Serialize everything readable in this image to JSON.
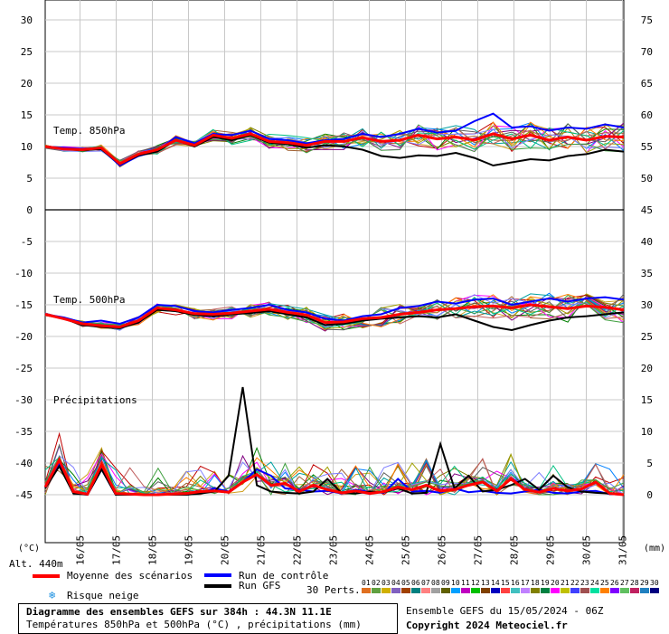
{
  "chart_data": {
    "type": "line",
    "dates": [
      "16/05",
      "17/05",
      "18/05",
      "19/05",
      "20/05",
      "21/05",
      "22/05",
      "23/05",
      "24/05",
      "25/05",
      "26/05",
      "27/05",
      "28/05",
      "29/05",
      "30/05",
      "31/05"
    ],
    "y_left_ticks": [
      30,
      25,
      20,
      15,
      10,
      5,
      0,
      -5,
      -10,
      -15,
      -20,
      -25,
      -30,
      -35,
      -40,
      -45
    ],
    "y_right_ticks": [
      75,
      70,
      65,
      60,
      55,
      50,
      45,
      40,
      35,
      30,
      25,
      20,
      15,
      10,
      5,
      0
    ],
    "y_left_unit": "(°C)",
    "y_right_unit": "(mm)",
    "panel_labels": {
      "t850": "Temp. 850hPa",
      "t500": "Temp. 500hPa",
      "precip": "Précipitations"
    },
    "series": [
      {
        "name": "Moyenne des scénarios",
        "color": "#ff0000",
        "t850": [
          10,
          9.6,
          9.5,
          9.8,
          7.3,
          8.8,
          9.5,
          11,
          10.2,
          11.8,
          11.3,
          12,
          10.8,
          10.6,
          10.2,
          10.8,
          10.8,
          11.4,
          10.8,
          11,
          11.8,
          11.2,
          11.5,
          11,
          12,
          11.2,
          11.8,
          11,
          11.5,
          11,
          11.6,
          11.5
        ],
        "t500": [
          -16.5,
          -17.2,
          -18,
          -18.3,
          -18.5,
          -17.5,
          -15.5,
          -15.8,
          -16.4,
          -16.5,
          -16.3,
          -16,
          -15.7,
          -16.2,
          -16.6,
          -17.8,
          -17.7,
          -17.2,
          -17,
          -16.5,
          -16.2,
          -15.8,
          -15.6,
          -15.3,
          -15.2,
          -15.5,
          -15,
          -15.3,
          -15.6,
          -15.2,
          -15.4,
          -15.8
        ],
        "precip": [
          1.2,
          5.5,
          0.5,
          0.1,
          4.8,
          0.2,
          0.1,
          0,
          0,
          0.1,
          0.2,
          0.5,
          0.6,
          0.4,
          2,
          3.2,
          1.5,
          1.8,
          0.5,
          1.5,
          0.8,
          0.3,
          0.6,
          0.2,
          0.5,
          1.2,
          0.8,
          1.5,
          0.6,
          0.8,
          1.5,
          2,
          0.6,
          2.5,
          0.8,
          0.4,
          1,
          0.6,
          0.9,
          2,
          0.2,
          0
        ]
      },
      {
        "name": "Run de contrôle",
        "color": "#0000ff",
        "t850": [
          10,
          9.8,
          9.6,
          9.7,
          7,
          8.5,
          9.3,
          11.5,
          10.5,
          12,
          11.8,
          12.5,
          11.2,
          11,
          10.5,
          11,
          11.2,
          12,
          11.5,
          12,
          12.8,
          12.2,
          12.5,
          14,
          15.2,
          13,
          13.2,
          12.5,
          13,
          12.8,
          13.5,
          13
        ],
        "t500": [
          -16.5,
          -17,
          -17.8,
          -17.5,
          -18,
          -17,
          -15,
          -15.2,
          -16,
          -16.2,
          -15.8,
          -15.5,
          -15,
          -15.8,
          -16.2,
          -17.2,
          -17.5,
          -16.8,
          -16.5,
          -15.5,
          -15.2,
          -14.5,
          -14.8,
          -14.2,
          -14,
          -15,
          -14.5,
          -14,
          -14.5,
          -14,
          -13.8,
          -14.2
        ],
        "precip": [
          1,
          5,
          0.3,
          0,
          4,
          0,
          0,
          0,
          0,
          0,
          0,
          0.3,
          1,
          0.5,
          2,
          4,
          3,
          1,
          0.8,
          0.5,
          0.6,
          0.2,
          0.8,
          0.4,
          0.3,
          2.5,
          0.5,
          0.6,
          0.3,
          1,
          0.4,
          0.6,
          0.3,
          0.2,
          0.5,
          0.8,
          0.3,
          0.2,
          0.5,
          0.6,
          0.1,
          0
        ]
      },
      {
        "name": "Run GFS",
        "color": "#000000",
        "t850": [
          10,
          9.6,
          9.4,
          9.6,
          7.2,
          8.6,
          9.2,
          11,
          10,
          11.5,
          11,
          11.8,
          10.6,
          10.4,
          9.8,
          10.2,
          10,
          9.5,
          8.5,
          8.2,
          8.6,
          8.5,
          9,
          8.2,
          7,
          7.5,
          8,
          7.8,
          8.5,
          8.8,
          9.5,
          9.2
        ],
        "t500": [
          -16.5,
          -17.2,
          -18.2,
          -18.5,
          -18.7,
          -17.8,
          -15.8,
          -16,
          -16.6,
          -16.8,
          -16.5,
          -16.3,
          -16,
          -16.5,
          -17,
          -18.2,
          -18,
          -17.5,
          -17.2,
          -17,
          -16.8,
          -17,
          -16.5,
          -17.5,
          -18.5,
          -19,
          -18.2,
          -17.5,
          -17,
          -16.8,
          -16.5,
          -16.2
        ],
        "precip": [
          1,
          4.5,
          0.2,
          0,
          4,
          0,
          0,
          0,
          0,
          0,
          0,
          0.2,
          0.5,
          3,
          17,
          1.5,
          0.5,
          0.3,
          0.2,
          0.5,
          2.5,
          0.3,
          0.2,
          0.5,
          0.4,
          1,
          0.2,
          0.3,
          8,
          1,
          3,
          0.5,
          0.8,
          1.5,
          2.5,
          0.8,
          3,
          1.2,
          0.5,
          0.3,
          0.2,
          0
        ]
      }
    ],
    "ensemble_colors": [
      "#d0a020",
      "#808000",
      "#c00000",
      "#008000",
      "#ff00ff",
      "#a06030",
      "#0080ff",
      "#00a0a0",
      "#800080",
      "#ff8000",
      "#606060",
      "#a0a000",
      "#00c080",
      "#8080ff",
      "#c06060",
      "#40a040"
    ],
    "ylim_left": [
      -45,
      30
    ],
    "ylim_right": [
      0,
      75
    ]
  },
  "altitude": "Alt. 440m",
  "legend": {
    "mean": "Moyenne des scénarios",
    "control": "Run de contrôle",
    "gfs": "Run GFS",
    "snow_risk": "Risque neige",
    "perts_label": "30 Perts.",
    "pert_numbers": [
      "01",
      "02",
      "03",
      "04",
      "05",
      "06",
      "07",
      "08",
      "09",
      "10",
      "11",
      "12",
      "13",
      "14",
      "15",
      "16",
      "17",
      "18",
      "19",
      "20",
      "21",
      "22",
      "23",
      "24",
      "25",
      "26",
      "27",
      "28",
      "29",
      "30"
    ],
    "pert_colors": [
      "#e07020",
      "#60a040",
      "#d0b000",
      "#8060c0",
      "#a04000",
      "#008080",
      "#ff8080",
      "#a0a0a0",
      "#606000",
      "#00a0ff",
      "#c000c0",
      "#00c000",
      "#804000",
      "#0000c0",
      "#ff4040",
      "#40c0c0",
      "#c080ff",
      "#808000",
      "#008040",
      "#ff00ff",
      "#c0c000",
      "#4040ff",
      "#a05050",
      "#00e0a0",
      "#ff8000",
      "#8000ff",
      "#60c060",
      "#c02060",
      "#2080c0",
      "#000080"
    ],
    "snow_icon": "snowflake-icon"
  },
  "footer": {
    "title": "Diagramme des ensembles GEFS sur 384h : 44.3N 11.1E",
    "subtitle": "Températures 850hPa et 500hPa (°C) , précipitations (mm)",
    "run": "Ensemble GEFS du 15/05/2024 - 06Z",
    "copyright": "Copyright 2024 Meteociel.fr"
  }
}
